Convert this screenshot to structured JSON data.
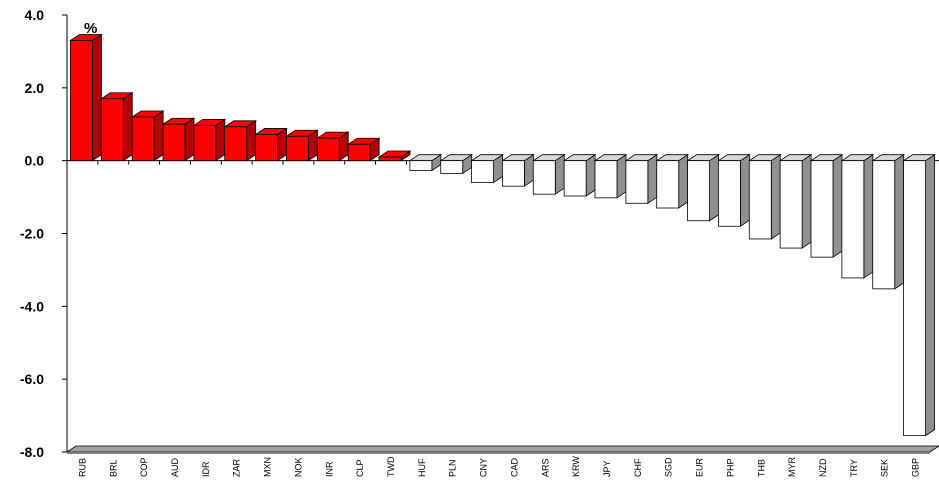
{
  "chart_data": {
    "type": "bar",
    "unit_label": "%",
    "categories": [
      "RUB",
      "BRL",
      "COP",
      "AUD",
      "IDR",
      "ZAR",
      "MXN",
      "NOK",
      "INR",
      "CLP",
      "TWD",
      "HUF",
      "PLN",
      "CNY",
      "CAD",
      "ARS",
      "KRW",
      "JPY",
      "CHF",
      "SGD",
      "EUR",
      "PHP",
      "THB",
      "MYR",
      "NZD",
      "TRY",
      "SEK",
      "GBP"
    ],
    "values": [
      3.3,
      1.7,
      1.2,
      1.0,
      0.97,
      0.93,
      0.72,
      0.67,
      0.62,
      0.45,
      0.1,
      -0.27,
      -0.35,
      -0.6,
      -0.7,
      -0.92,
      -0.97,
      -1.02,
      -1.17,
      -1.3,
      -1.65,
      -1.8,
      -2.15,
      -2.4,
      -2.65,
      -3.22,
      -3.52,
      -7.55
    ],
    "y_tick_labels": [
      "4.0",
      "2.0",
      "0.0",
      "-2.0",
      "-4.0",
      "-6.0",
      "-8.0"
    ],
    "y_tick_values": [
      4,
      2,
      0,
      -2,
      -4,
      -6,
      -8
    ],
    "ylim": [
      -8,
      4
    ],
    "grid": false,
    "colors": {
      "positive": "#ff0000",
      "positive_dark": "#b00000",
      "negative": "#ffffff",
      "negative_dark": "#909090",
      "floor": "#a0a0a0"
    }
  }
}
